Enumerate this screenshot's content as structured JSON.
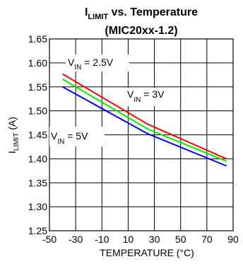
{
  "chart_data": {
    "type": "line",
    "title_main": "I",
    "title_sub": "LIMIT",
    "title_rest": " vs. Temperature",
    "subtitle": "(MIC20xx-1.2)",
    "xlabel": "TEMPERATURE (°C)",
    "ylabel_main": "I",
    "ylabel_sub": "LIMIT",
    "ylabel_rest": " (A)",
    "xlim": [
      -50,
      90
    ],
    "ylim": [
      1.25,
      1.65
    ],
    "x_ticks": [
      -50,
      -30,
      -10,
      10,
      30,
      50,
      70,
      90
    ],
    "y_ticks": [
      1.25,
      1.3,
      1.35,
      1.4,
      1.45,
      1.5,
      1.55,
      1.6,
      1.65
    ],
    "x_tick_labels": [
      "-50",
      "-30",
      "-10",
      "10",
      "30",
      "50",
      "70",
      "90"
    ],
    "y_tick_labels": [
      "1.25",
      "1.30",
      "1.35",
      "1.40",
      "1.45",
      "1.50",
      "1.55",
      "1.60",
      "1.65"
    ],
    "grid": true,
    "series": [
      {
        "name": "V_IN = 2.5V",
        "color": "#ff0000",
        "x": [
          -40,
          25,
          85
        ],
        "y": [
          1.577,
          1.472,
          1.4
        ]
      },
      {
        "name": "V_IN = 3V",
        "color": "#00ee00",
        "x": [
          -40,
          25,
          85
        ],
        "y": [
          1.566,
          1.462,
          1.395
        ]
      },
      {
        "name": "V_IN = 5V",
        "color": "#0000ff",
        "x": [
          -40,
          25,
          85
        ],
        "y": [
          1.55,
          1.452,
          1.385
        ]
      }
    ],
    "annotations": [
      {
        "main": "V",
        "sub": "IN",
        "rest": " = 2.5V"
      },
      {
        "main": "V",
        "sub": "IN",
        "rest": " = 3V"
      },
      {
        "main": "V",
        "sub": "IN",
        "rest": " = 5V"
      }
    ]
  }
}
